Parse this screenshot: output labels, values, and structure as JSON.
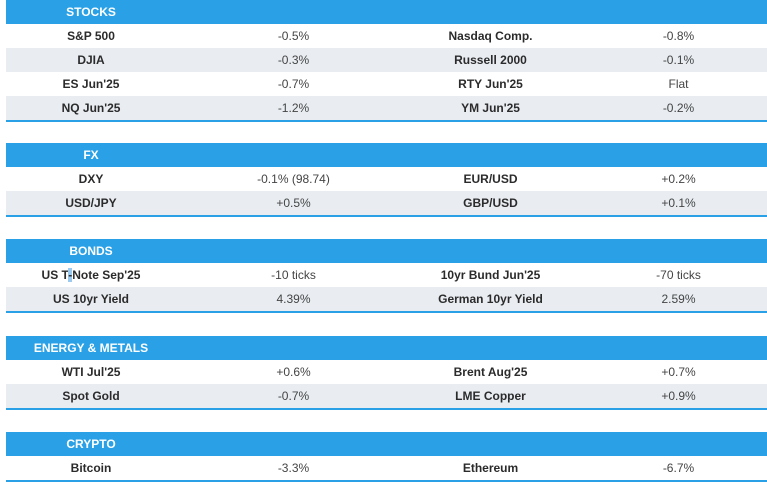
{
  "sections": [
    {
      "title": "STOCKS",
      "rows": [
        {
          "n1": "S&P 500",
          "v1": "-0.5%",
          "n2": "Nasdaq Comp.",
          "v2": "-0.8%"
        },
        {
          "n1": "DJIA",
          "v1": "-0.3%",
          "n2": "Russell 2000",
          "v2": "-0.1%"
        },
        {
          "n1": "ES Jun'25",
          "v1": "-0.7%",
          "n2": "RTY Jun'25",
          "v2": "Flat"
        },
        {
          "n1": "NQ Jun'25",
          "v1": "-1.2%",
          "n2": "YM Jun'25",
          "v2": "-0.2%"
        }
      ]
    },
    {
      "title": "FX",
      "rows": [
        {
          "n1": "DXY",
          "v1": "-0.1% (98.74)",
          "n2": "EUR/USD",
          "v2": "+0.2%"
        },
        {
          "n1": "USD/JPY",
          "v1": "+0.5%",
          "n2": "GBP/USD",
          "v2": "+0.1%"
        }
      ]
    },
    {
      "title": "BONDS",
      "rows": [
        {
          "n1a": "US T",
          "n1b": "-",
          "n1c": "Note Sep'25",
          "v1": "-10 ticks",
          "n2": "10yr Bund Jun'25",
          "v2": "-70 ticks"
        },
        {
          "n1": "US 10yr Yield",
          "v1": "4.39%",
          "n2": "German 10yr Yield",
          "v2": "2.59%"
        }
      ]
    },
    {
      "title": "ENERGY & METALS",
      "rows": [
        {
          "n1": "WTI Jul'25",
          "v1": "+0.6%",
          "n2": "Brent Aug'25",
          "v2": "+0.7%"
        },
        {
          "n1": "Spot Gold",
          "v1": "-0.7%",
          "n2": "LME Copper",
          "v2": "+0.9%"
        }
      ]
    },
    {
      "title": "CRYPTO",
      "rows": [
        {
          "n1": "Bitcoin",
          "v1": "-3.3%",
          "n2": "Ethereum",
          "v2": "-6.7%"
        }
      ]
    }
  ]
}
